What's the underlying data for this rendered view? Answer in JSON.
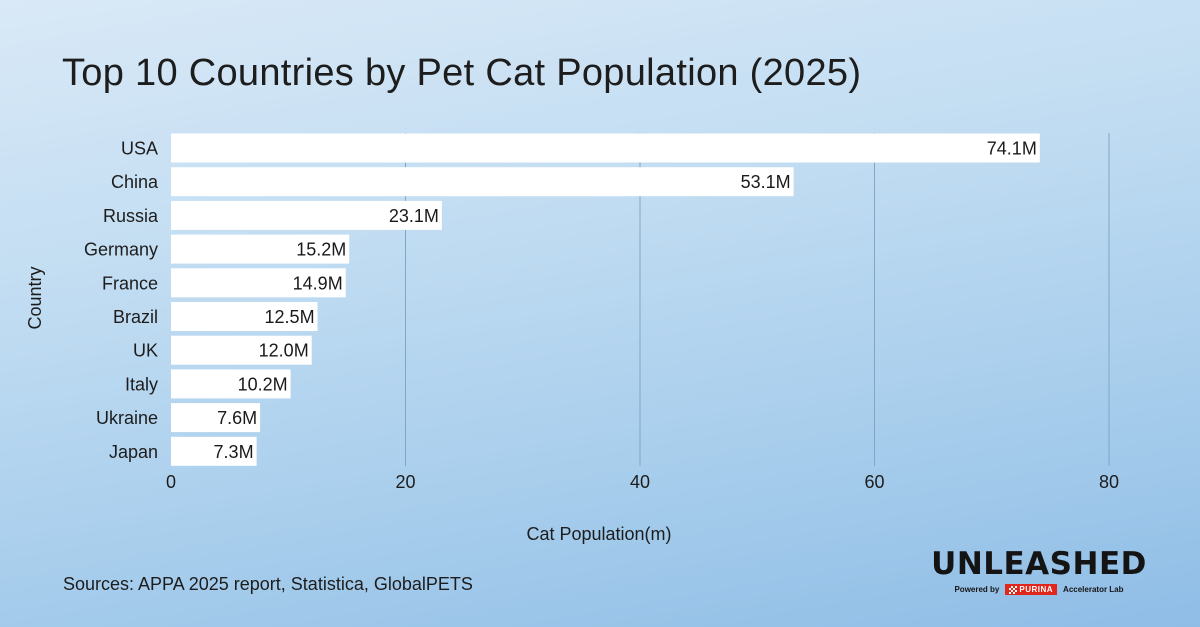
{
  "chart_data": {
    "type": "bar",
    "orientation": "horizontal",
    "title": "Top 10 Countries by Pet Cat Population (2025)",
    "categories": [
      "USA",
      "China",
      "Russia",
      "Germany",
      "France",
      "Brazil",
      "UK",
      "Italy",
      "Ukraine",
      "Japan"
    ],
    "values": [
      74.1,
      53.1,
      23.1,
      15.2,
      14.9,
      12.5,
      12.0,
      10.2,
      7.6,
      7.3
    ],
    "data_labels": [
      "74.1M",
      "53.1M",
      "23.1M",
      "15.2M",
      "14.9M",
      "12.5M",
      "12.0M",
      "10.2M",
      "7.6M",
      "7.3M"
    ],
    "xlabel": "Cat Population(m)",
    "ylabel": "Country",
    "xlim": [
      0,
      80
    ],
    "xticks": [
      "0",
      "20",
      "40",
      "60",
      "80"
    ],
    "grid": true,
    "bar_color": "#ffffff"
  },
  "source_text": "Sources: APPA 2025 report, Statistica, GlobalPETS",
  "brand": {
    "wordmark": "UNLEASHED",
    "powered_by": "Powered by",
    "partner": "PURINA",
    "lab": "Accelerator Lab",
    "partner_color": "#e1261c"
  }
}
